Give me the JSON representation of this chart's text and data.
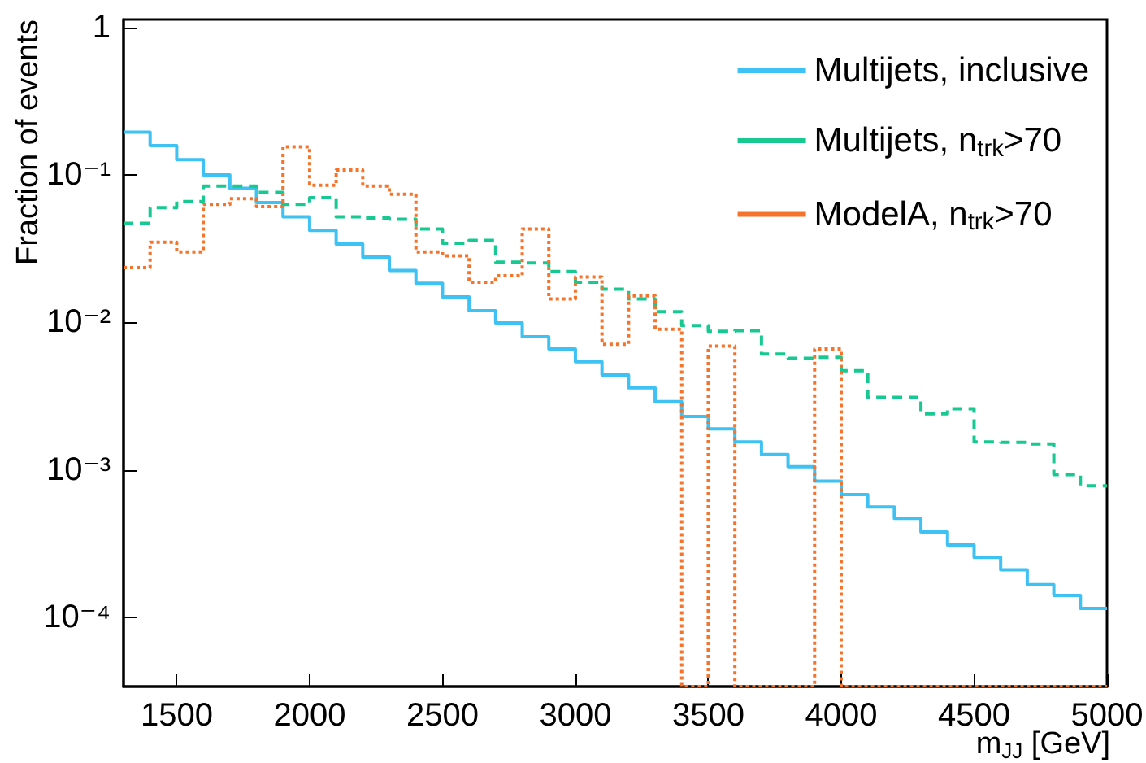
{
  "chart_data": {
    "type": "histogram",
    "xlabel": "m$_{JJ}$ [GeV]",
    "ylabel": "Fraction of events",
    "bins": [
      1300,
      1400,
      1500,
      1600,
      1700,
      1800,
      1900,
      2000,
      2100,
      2200,
      2300,
      2400,
      2500,
      2600,
      2700,
      2800,
      2900,
      3000,
      3100,
      3200,
      3300,
      3400,
      3500,
      3600,
      3700,
      3800,
      3900,
      4000,
      4100,
      4200,
      4300,
      4400,
      4500,
      4600,
      4700,
      4800,
      4900,
      5000
    ],
    "series": [
      {
        "name": "Multijets, inclusive",
        "color": "#3ec1f3",
        "line_style": "solid",
        "values": [
          0.195,
          0.158,
          0.127,
          0.1,
          0.081,
          0.065,
          0.052,
          0.042,
          0.034,
          0.0277,
          0.0225,
          0.0184,
          0.0149,
          0.012,
          0.0099,
          0.008,
          0.0066,
          0.0054,
          0.0044,
          0.0036,
          0.0029,
          0.0023,
          0.0019,
          0.00155,
          0.00127,
          0.00105,
          0.00084,
          0.00068,
          0.00056,
          0.00047,
          0.00038,
          0.00031,
          0.000255,
          0.00021,
          0.000167,
          0.000141,
          0.000115
        ]
      },
      {
        "name": "Multijets, n$_{trk}$>70",
        "color": "#17c990",
        "line_style": "dashed",
        "values": [
          0.047,
          0.06,
          0.066,
          0.084,
          0.084,
          0.076,
          0.063,
          0.07,
          0.052,
          0.051,
          0.05,
          0.043,
          0.0344,
          0.036,
          0.0256,
          0.0253,
          0.0221,
          0.0187,
          0.0168,
          0.0144,
          0.0118,
          0.0095,
          0.0087,
          0.0088,
          0.0061,
          0.0057,
          0.0058,
          0.0047,
          0.0031,
          0.0031,
          0.0024,
          0.0026,
          0.00155,
          0.00154,
          0.0015,
          0.00093,
          0.00078
        ]
      },
      {
        "name": "ModelA, n$_{trk}$>70",
        "color": "#f5732a",
        "line_style": "dotted",
        "values": [
          0.0235,
          0.035,
          0.03,
          0.063,
          0.069,
          0.061,
          0.155,
          0.085,
          0.108,
          0.084,
          0.074,
          0.03,
          0.0283,
          0.0187,
          0.0207,
          0.043,
          0.0144,
          0.0203,
          0.0071,
          0.0151,
          0.009,
          null,
          0.0069,
          null,
          null,
          null,
          0.0066,
          null,
          null,
          null,
          null,
          null,
          null,
          null,
          null,
          null,
          null
        ]
      }
    ],
    "xlim": [
      1300,
      5000
    ],
    "xticks": [
      1500,
      2000,
      2500,
      3000,
      3500,
      4000,
      4500,
      5000
    ],
    "ylim": [
      3.4e-05,
      1.13
    ],
    "log": "y",
    "yticks": [
      {
        "value": 0.0001,
        "label": "10⁻⁴"
      },
      {
        "value": 0.001,
        "label": "10⁻³"
      },
      {
        "value": 0.01,
        "label": "10⁻²"
      },
      {
        "value": 0.1,
        "label": "10⁻¹"
      },
      1
    ],
    "legend": "top right",
    "grid": false
  }
}
